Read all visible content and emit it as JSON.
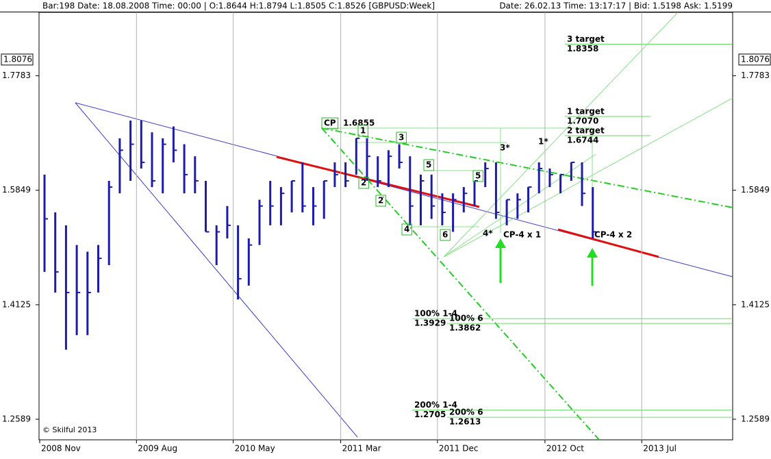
{
  "chart_data": {
    "type": "hlc",
    "header_left": "Bar:198 Date:  18.08.2008 Time:  00:00 | O:1.8644 H:1.8794 L:1.8505 C:1.8526   [GBPUSD:Week]",
    "header_right": "Date: 26.02.13 Time: 13:17:17 | Bid: 1.5198 Ask: 1.5199",
    "categories": [
      "2008 Nov",
      null,
      null,
      null,
      null,
      null,
      null,
      null,
      null,
      "2009 Aug",
      null,
      null,
      null,
      null,
      null,
      null,
      null,
      null,
      "2010 May",
      null,
      null,
      null,
      null,
      null,
      null,
      null,
      null,
      null,
      "2011 Mar",
      null,
      null,
      null,
      null,
      null,
      null,
      null,
      null,
      "2011 Dec",
      null,
      null,
      null,
      null,
      null,
      null,
      null,
      null,
      null,
      "2012 Oct",
      null,
      null,
      null,
      null,
      null,
      null,
      null,
      null,
      "2013 Jul"
    ],
    "high": [
      1.61,
      1.55,
      1.53,
      1.5,
      1.49,
      1.5,
      1.6,
      1.67,
      1.7,
      1.7,
      1.68,
      1.67,
      1.69,
      1.66,
      1.64,
      1.6,
      1.53,
      1.56,
      1.53,
      1.51,
      1.57,
      1.6,
      1.59,
      1.6,
      1.63,
      1.59,
      1.6,
      1.63,
      1.63,
      1.67,
      1.67,
      1.64,
      1.65,
      1.66,
      1.64,
      1.61,
      1.61,
      1.58,
      1.58,
      1.59,
      1.6,
      1.63,
      1.63,
      1.57,
      1.58,
      1.59,
      1.63,
      1.62,
      1.61,
      1.63,
      1.63,
      1.59,
      null,
      null,
      null,
      null,
      null
    ],
    "low": [
      1.46,
      1.43,
      1.35,
      1.37,
      1.37,
      1.43,
      1.47,
      1.58,
      1.6,
      1.62,
      1.59,
      1.58,
      1.63,
      1.58,
      1.58,
      1.52,
      1.47,
      1.51,
      1.42,
      1.44,
      1.5,
      1.53,
      1.53,
      1.55,
      1.55,
      1.53,
      1.54,
      1.59,
      1.59,
      1.61,
      1.6,
      1.59,
      1.59,
      1.62,
      1.53,
      1.53,
      1.54,
      1.53,
      1.52,
      1.55,
      1.56,
      1.59,
      1.54,
      1.53,
      1.54,
      1.55,
      1.58,
      1.59,
      1.58,
      1.6,
      1.56,
      1.51,
      null,
      null,
      null,
      null,
      null
    ],
    "close": [
      1.54,
      1.46,
      1.43,
      1.43,
      1.43,
      1.48,
      1.59,
      1.65,
      1.66,
      1.63,
      1.6,
      1.66,
      1.65,
      1.61,
      1.6,
      1.52,
      1.52,
      1.53,
      1.45,
      1.5,
      1.56,
      1.56,
      1.58,
      1.6,
      1.56,
      1.56,
      1.6,
      1.61,
      1.6,
      1.67,
      1.64,
      1.6,
      1.64,
      1.63,
      1.56,
      1.6,
      1.56,
      1.55,
      1.57,
      1.58,
      1.6,
      1.62,
      1.55,
      1.57,
      1.57,
      1.59,
      1.62,
      1.61,
      1.61,
      1.63,
      1.58,
      1.52,
      null,
      null,
      null,
      null,
      null
    ],
    "color": "#1c1ca8",
    "log_scale": true,
    "ylim": [
      1.2331,
      1.8955
    ],
    "yticks": [
      1.7783,
      1.5849,
      1.4125,
      1.2589
    ],
    "price_marker": 1.8076,
    "grid": true,
    "levels": [
      {
        "name": "3 target",
        "value": 1.8358,
        "label": "1.8358"
      },
      {
        "name": "1 target",
        "value": 1.707,
        "label": "1.7070"
      },
      {
        "name": "2 target",
        "value": 1.6744,
        "label": "1.6744"
      },
      {
        "name": "100% 1-4",
        "value": 1.3929,
        "label": "1.3929"
      },
      {
        "name": "100% 6",
        "value": 1.3862,
        "label": "1.3862"
      },
      {
        "name": "200% 1-4",
        "value": 1.2705,
        "label": "1.2705"
      },
      {
        "name": "200% 6",
        "value": 1.2613,
        "label": "1.2613"
      }
    ],
    "annotations": [
      "CP",
      "1.6855",
      "1",
      "2",
      "2",
      "3",
      "4",
      "5",
      "6",
      "5",
      "4*",
      "3*",
      "1*",
      "CP-4 x 1",
      "CP-4 x 2",
      "© Skilful 2013"
    ]
  }
}
